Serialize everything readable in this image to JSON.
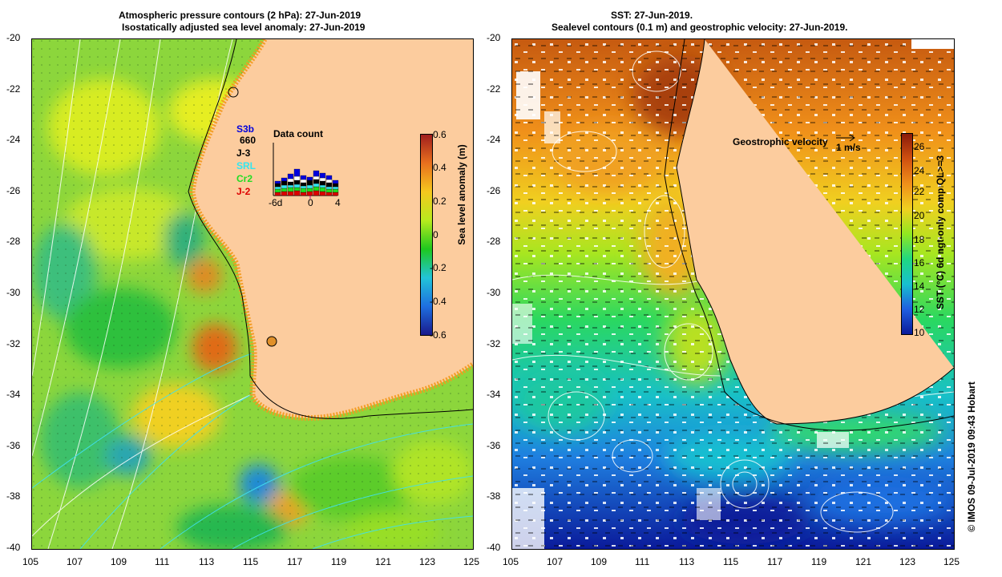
{
  "left": {
    "title_line1": "Atmospheric pressure contours (2 hPa): 27-Jun-2019",
    "title_line2": "Isostatically adjusted sea level anomaly: 27-Jun-2019",
    "colorbar_label": "Sea level anomaly (m)",
    "colorbar_ticks": [
      "0.6",
      "0.4",
      "0.2",
      "0",
      "-0.2",
      "-0.4",
      "-0.6"
    ],
    "data_count_title": "Data count",
    "data_count_axis": [
      "-6d",
      "0",
      "4"
    ],
    "missions": [
      {
        "label": "S3b",
        "color": "#0000dd"
      },
      {
        "label": "660",
        "color": "#000000"
      },
      {
        "label": "J-3",
        "color": "#000000"
      },
      {
        "label": "SRL",
        "color": "#33e6f0"
      },
      {
        "label": "Cr2",
        "color": "#22dd22"
      },
      {
        "label": "J-2",
        "color": "#dd0000"
      }
    ]
  },
  "right": {
    "title_line1": "SST: 27-Jun-2019.",
    "title_line2": "Sealevel contours (0.1 m) and geostrophic velocity: 27-Jun-2019.",
    "colorbar_label": "SST (°C) 6d ngt-only comp QL>=3",
    "colorbar_ticks": [
      "26",
      "24",
      "22",
      "20",
      "18",
      "16",
      "14",
      "12",
      "10"
    ],
    "velocity_label": "Geostrophic velocity",
    "velocity_scale": "1 m/s"
  },
  "axes": {
    "lat_ticks": [
      "-20",
      "-22",
      "-24",
      "-26",
      "-28",
      "-30",
      "-32",
      "-34",
      "-36",
      "-38",
      "-40"
    ],
    "lon_ticks": [
      "105",
      "107",
      "109",
      "111",
      "113",
      "115",
      "117",
      "119",
      "121",
      "123",
      "125"
    ]
  },
  "credit": "© IMOS 09-Jul-2019 09:43 Hobart",
  "colors": {
    "land": "#fccc9e",
    "sla_scale": [
      "#1a1a8c",
      "#1e6fe0",
      "#22c4d8",
      "#1ec81e",
      "#b8ea1e",
      "#f5c81e",
      "#e8701e",
      "#a01e1e"
    ],
    "sst_scale": [
      "#0a1a9a",
      "#1f5fe0",
      "#18c0d0",
      "#20d880",
      "#90e820",
      "#f0d020",
      "#f0901a",
      "#d05010",
      "#8a1a0a"
    ]
  }
}
